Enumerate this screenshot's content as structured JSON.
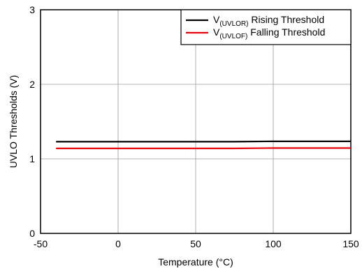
{
  "chart_data": {
    "type": "line",
    "title": "",
    "xlabel": "Temperature (°C)",
    "ylabel": "UVLO Thresholds (V)",
    "xlim": [
      -50,
      150
    ],
    "ylim": [
      0,
      3
    ],
    "xticks": [
      -50,
      0,
      50,
      100,
      150
    ],
    "yticks": [
      0,
      1,
      2,
      3
    ],
    "grid": true,
    "legend_position": "top-right",
    "series": [
      {
        "name": "V(UVLOR) Rising Threshold",
        "legend": {
          "prefix": "V",
          "sub": "(UVLOR)",
          "suffix": " Rising Threshold"
        },
        "color": "#000000",
        "x": [
          -40,
          0,
          25,
          50,
          75,
          100,
          125,
          150
        ],
        "y": [
          1.23,
          1.23,
          1.23,
          1.23,
          1.23,
          1.235,
          1.235,
          1.235
        ]
      },
      {
        "name": "V(UVLOF) Falling Threshold",
        "legend": {
          "prefix": "V",
          "sub": "(UVLOF)",
          "suffix": " Falling Threshold"
        },
        "color": "#e8000b",
        "x": [
          -40,
          0,
          25,
          50,
          75,
          100,
          125,
          150
        ],
        "y": [
          1.14,
          1.14,
          1.14,
          1.14,
          1.14,
          1.145,
          1.145,
          1.145
        ]
      }
    ]
  }
}
